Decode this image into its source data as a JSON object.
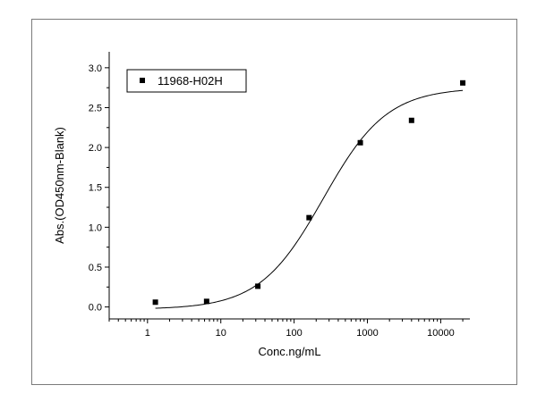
{
  "chart_data": {
    "type": "scatter",
    "xlabel": "Conc.ng/mL",
    "ylabel": "Abs.(OD450nm-Blank)",
    "x_scale": "log",
    "xlim": [
      0.3,
      25000
    ],
    "ylim": [
      -0.15,
      3.2
    ],
    "x_ticks": [
      {
        "value": 1,
        "label": "1"
      },
      {
        "value": 10,
        "label": "10"
      },
      {
        "value": 100,
        "label": "100"
      },
      {
        "value": 1000,
        "label": "1000"
      },
      {
        "value": 10000,
        "label": "10000"
      }
    ],
    "y_ticks": [
      {
        "value": 0,
        "label": "0.0"
      },
      {
        "value": 0.5,
        "label": "0.5"
      },
      {
        "value": 1,
        "label": "1.0"
      },
      {
        "value": 1.5,
        "label": "1.5"
      },
      {
        "value": 2,
        "label": "2.0"
      },
      {
        "value": 2.5,
        "label": "2.5"
      },
      {
        "value": 3,
        "label": "3.0"
      }
    ],
    "grid": false,
    "legend_position": "top-left",
    "series": [
      {
        "name": "11968-H02H",
        "marker": "square",
        "color": "#000000",
        "points": [
          {
            "x": 1.28,
            "y": 0.06
          },
          {
            "x": 6.4,
            "y": 0.07
          },
          {
            "x": 32,
            "y": 0.26
          },
          {
            "x": 160,
            "y": 1.12
          },
          {
            "x": 800,
            "y": 2.06
          },
          {
            "x": 4000,
            "y": 2.34
          },
          {
            "x": 20000,
            "y": 2.81
          }
        ]
      }
    ],
    "fit_curve": {
      "type": "4PL",
      "bottom": -0.03,
      "top": 2.75,
      "ec50": 250,
      "hill": 1.0,
      "x_range": [
        1.28,
        20000
      ],
      "color": "#000000"
    }
  }
}
